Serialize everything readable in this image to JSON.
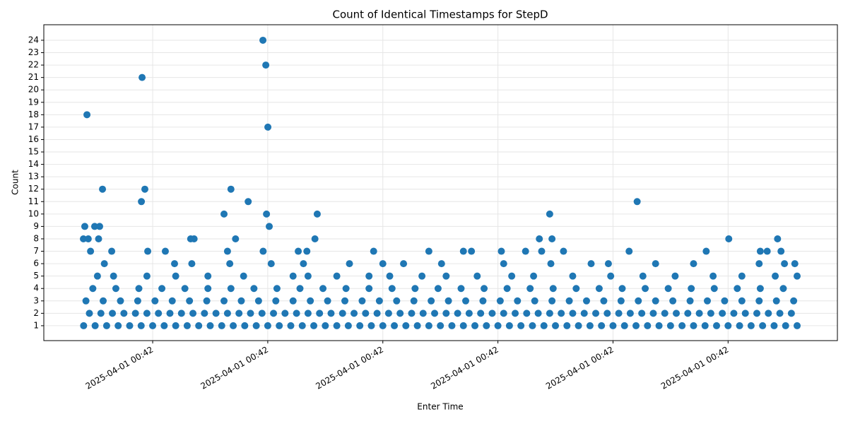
{
  "chart_data": {
    "type": "scatter",
    "title": "Count of Identical Timestamps for StepD",
    "x_label": "Enter Time",
    "y_label": "Count",
    "color": "#1f77b4",
    "grid": true,
    "xlim": [
      0.54,
      69.5
    ],
    "ylim": [
      -0.2,
      25.25
    ],
    "xticks": [
      {
        "value": 10,
        "label": "2025-04-01 00:42"
      },
      {
        "value": 20,
        "label": "2025-04-01 00:42"
      },
      {
        "value": 30,
        "label": "2025-04-01 00:42"
      },
      {
        "value": 40,
        "label": "2025-04-01 00:42"
      },
      {
        "value": 50,
        "label": "2025-04-01 00:42"
      },
      {
        "value": 60,
        "label": "2025-04-01 00:42"
      }
    ],
    "yticks": [
      1,
      2,
      3,
      4,
      5,
      6,
      7,
      8,
      9,
      10,
      11,
      12,
      13,
      14,
      15,
      16,
      17,
      18,
      19,
      20,
      21,
      22,
      23,
      24
    ],
    "x": [
      4,
      5,
      6,
      7,
      8,
      9,
      10,
      11,
      12,
      13,
      14,
      15,
      16,
      17,
      18,
      19,
      20,
      21,
      22,
      23,
      24,
      25,
      26,
      27,
      28,
      29,
      30,
      31,
      32,
      33,
      34,
      35,
      36,
      37,
      38,
      39,
      40,
      41,
      42,
      43,
      44,
      45,
      46,
      47,
      48,
      49,
      50,
      51,
      52,
      53,
      54,
      55,
      56,
      57,
      58,
      59,
      60,
      61,
      62,
      63,
      64,
      65,
      66,
      4.5,
      5.5,
      6.5,
      7.5,
      8.5,
      9.5,
      10.5,
      11.5,
      12.5,
      13.5,
      14.5,
      15.5,
      16.5,
      17.5,
      18.5,
      19.5,
      20.5,
      21.5,
      22.5,
      23.5,
      24.5,
      25.5,
      26.5,
      27.5,
      28.5,
      29.5,
      30.5,
      31.5,
      32.5,
      33.5,
      34.5,
      35.5,
      36.5,
      37.5,
      38.5,
      39.5,
      40.5,
      41.5,
      42.5,
      43.5,
      44.5,
      45.5,
      46.5,
      47.5,
      48.5,
      49.5,
      50.5,
      51.5,
      52.5,
      53.5,
      54.5,
      55.5,
      56.5,
      57.5,
      58.5,
      59.5,
      60.5,
      61.5,
      62.5,
      63.5,
      64.5,
      65.5,
      4.2,
      5.7,
      7.2,
      8.7,
      10.2,
      11.7,
      13.2,
      14.7,
      16.2,
      17.7,
      19.2,
      20.7,
      22.2,
      23.7,
      25.2,
      26.7,
      28.2,
      29.7,
      31.2,
      32.7,
      34.2,
      35.7,
      37.2,
      38.7,
      40.2,
      41.7,
      43.2,
      44.7,
      46.2,
      47.7,
      49.2,
      50.7,
      52.2,
      53.7,
      55.2,
      56.7,
      58.2,
      59.7,
      61.2,
      62.7,
      64.2,
      65.7,
      4.8,
      6.8,
      8.8,
      10.8,
      12.8,
      14.8,
      16.8,
      18.8,
      20.8,
      22.8,
      24.8,
      26.8,
      28.8,
      30.8,
      32.8,
      34.8,
      36.8,
      38.8,
      40.8,
      42.8,
      44.8,
      46.8,
      48.8,
      50.8,
      52.8,
      54.8,
      56.8,
      58.8,
      60.8,
      62.8,
      64.8,
      5.2,
      6.6,
      9.5,
      12,
      14.8,
      17.9,
      22.2,
      23.5,
      26,
      28.8,
      30.6,
      33.4,
      35.5,
      38.2,
      41.2,
      43.1,
      46.5,
      49.8,
      52.6,
      55.4,
      58.7,
      61.2,
      64.1,
      66.0,
      5.8,
      11.9,
      13.4,
      16.7,
      20.3,
      23.1,
      27.1,
      30.0,
      31.8,
      35.1,
      40.5,
      44.6,
      48.1,
      49.6,
      53.7,
      57.0,
      62.7,
      64.9,
      65.8,
      4.29,
      4.1,
      3.98,
      4.4,
      4.6,
      4.96,
      5.39,
      5.3,
      5.64,
      6.44,
      9.08,
      9.02,
      9.32,
      9.57,
      11.1,
      13.3,
      13.6,
      16.2,
      16.5,
      16.8,
      17.2,
      18.3,
      19.58,
      19.83,
      20.01,
      19.89,
      20.13,
      19.6,
      22.65,
      23.4,
      24.3,
      24.1,
      29.2,
      34.0,
      37.0,
      37.7,
      40.3,
      42.4,
      43.6,
      43.8,
      44.5,
      44.7,
      45.7,
      51.4,
      52.1,
      58.1,
      60.06,
      62.8,
      63.4,
      64.3,
      64.6
    ],
    "values": [
      1,
      1,
      1,
      1,
      1,
      1,
      1,
      1,
      1,
      1,
      1,
      1,
      1,
      1,
      1,
      1,
      1,
      1,
      1,
      1,
      1,
      1,
      1,
      1,
      1,
      1,
      1,
      1,
      1,
      1,
      1,
      1,
      1,
      1,
      1,
      1,
      1,
      1,
      1,
      1,
      1,
      1,
      1,
      1,
      1,
      1,
      1,
      1,
      1,
      1,
      1,
      1,
      1,
      1,
      1,
      1,
      1,
      1,
      1,
      1,
      1,
      1,
      1,
      2,
      2,
      2,
      2,
      2,
      2,
      2,
      2,
      2,
      2,
      2,
      2,
      2,
      2,
      2,
      2,
      2,
      2,
      2,
      2,
      2,
      2,
      2,
      2,
      2,
      2,
      2,
      2,
      2,
      2,
      2,
      2,
      2,
      2,
      2,
      2,
      2,
      2,
      2,
      2,
      2,
      2,
      2,
      2,
      2,
      2,
      2,
      2,
      2,
      2,
      2,
      2,
      2,
      2,
      2,
      2,
      2,
      2,
      2,
      2,
      2,
      2,
      3,
      3,
      3,
      3,
      3,
      3,
      3,
      3,
      3,
      3,
      3,
      3,
      3,
      3,
      3,
      3,
      3,
      3,
      3,
      3,
      3,
      3,
      3,
      3,
      3,
      3,
      3,
      3,
      3,
      3,
      3,
      3,
      3,
      3,
      3,
      3,
      3,
      3,
      3,
      3,
      3,
      3,
      4,
      4,
      4,
      4,
      4,
      4,
      4,
      4,
      4,
      4,
      4,
      4,
      4,
      4,
      4,
      4,
      4,
      4,
      4,
      4,
      4,
      4,
      4,
      4,
      4,
      4,
      4,
      4,
      4,
      4,
      4,
      5,
      5,
      5,
      5,
      5,
      5,
      5,
      5,
      5,
      5,
      5,
      5,
      5,
      5,
      5,
      5,
      5,
      5,
      5,
      5,
      5,
      5,
      5,
      5,
      6,
      6,
      6,
      6,
      6,
      6,
      6,
      6,
      6,
      6,
      6,
      6,
      6,
      6,
      6,
      6,
      6,
      6,
      6,
      18,
      9,
      8,
      8,
      7,
      9,
      9,
      8,
      12,
      7,
      21,
      11,
      12,
      7,
      7,
      8,
      8,
      10,
      7,
      12,
      8,
      11,
      24,
      22,
      17,
      10,
      9,
      7,
      7,
      7,
      10,
      8,
      7,
      7,
      7,
      7,
      7,
      7,
      8,
      7,
      10,
      8,
      7,
      7,
      11,
      7,
      8,
      7,
      7,
      8,
      7
    ]
  }
}
